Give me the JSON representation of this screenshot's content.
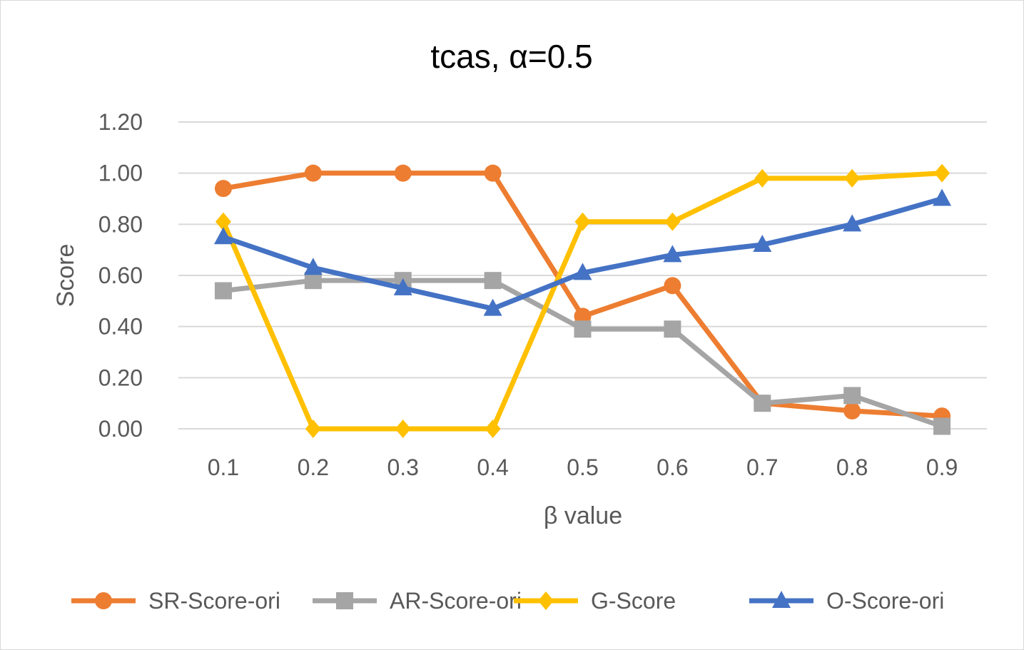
{
  "chart_data": {
    "type": "line",
    "title": "tcas, α=0.5",
    "xlabel": "β value",
    "ylabel": "Score",
    "categories": [
      "0.1",
      "0.2",
      "0.3",
      "0.4",
      "0.5",
      "0.6",
      "0.7",
      "0.8",
      "0.9"
    ],
    "ylim": [
      0,
      1.2
    ],
    "yticks": [
      "0.00",
      "0.20",
      "0.40",
      "0.60",
      "0.80",
      "1.00",
      "1.20"
    ],
    "grid": true,
    "legend": "bottom",
    "series": [
      {
        "name": "SR-Score-ori",
        "color": "#ED7D31",
        "marker": "circle",
        "values": [
          0.94,
          1.0,
          1.0,
          1.0,
          0.44,
          0.56,
          0.1,
          0.07,
          0.05
        ]
      },
      {
        "name": "AR-Score-ori",
        "color": "#A5A5A5",
        "marker": "square",
        "values": [
          0.54,
          0.58,
          0.58,
          0.58,
          0.39,
          0.39,
          0.1,
          0.13,
          0.01
        ]
      },
      {
        "name": "G-Score",
        "color": "#FFC000",
        "marker": "diamond",
        "values": [
          0.81,
          0.0,
          0.0,
          0.0,
          0.81,
          0.81,
          0.98,
          0.98,
          1.0
        ]
      },
      {
        "name": "O-Score-ori",
        "color": "#4472C4",
        "marker": "triangle",
        "values": [
          0.75,
          0.63,
          0.55,
          0.47,
          0.61,
          0.68,
          0.72,
          0.8,
          0.9
        ]
      }
    ]
  }
}
